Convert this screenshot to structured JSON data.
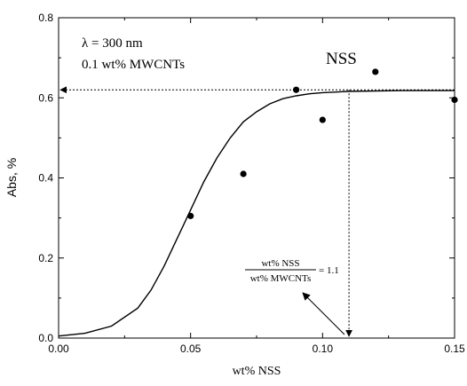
{
  "chart_data": {
    "type": "scatter",
    "xlabel": "wt% NSS",
    "ylabel": "Abs, %",
    "xlim": [
      0.0,
      0.15
    ],
    "ylim": [
      0.0,
      0.8
    ],
    "x_ticks": [
      "0.00",
      "0.05",
      "0.10",
      "0.15"
    ],
    "y_ticks": [
      "0.0",
      "0.2",
      "0.4",
      "0.6",
      "0.8"
    ],
    "series": [
      {
        "type": "scatter",
        "x": [
          0.05,
          0.07,
          0.09,
          0.1,
          0.12,
          0.15
        ],
        "y": [
          0.305,
          0.41,
          0.62,
          0.545,
          0.665,
          0.595
        ]
      },
      {
        "type": "line",
        "x": [
          0.0,
          0.01,
          0.02,
          0.03,
          0.035,
          0.04,
          0.045,
          0.05,
          0.055,
          0.06,
          0.065,
          0.07,
          0.075,
          0.08,
          0.085,
          0.09,
          0.095,
          0.1,
          0.11,
          0.12,
          0.13,
          0.14,
          0.15
        ],
        "y": [
          0.005,
          0.012,
          0.03,
          0.075,
          0.12,
          0.18,
          0.25,
          0.32,
          0.39,
          0.45,
          0.5,
          0.54,
          0.565,
          0.585,
          0.598,
          0.605,
          0.61,
          0.613,
          0.616,
          0.617,
          0.618,
          0.618,
          0.618
        ]
      }
    ],
    "reference": {
      "x": 0.11,
      "y": 0.62
    },
    "annotations": {
      "wavelength": "λ = 300 nm",
      "concentration": "0.1 wt% MWCNTs",
      "label_nss": "NSS",
      "ratio_numerator": "wt% NSS",
      "ratio_denominator": "wt% MWCNTs",
      "ratio_value": "= 1.1"
    }
  }
}
